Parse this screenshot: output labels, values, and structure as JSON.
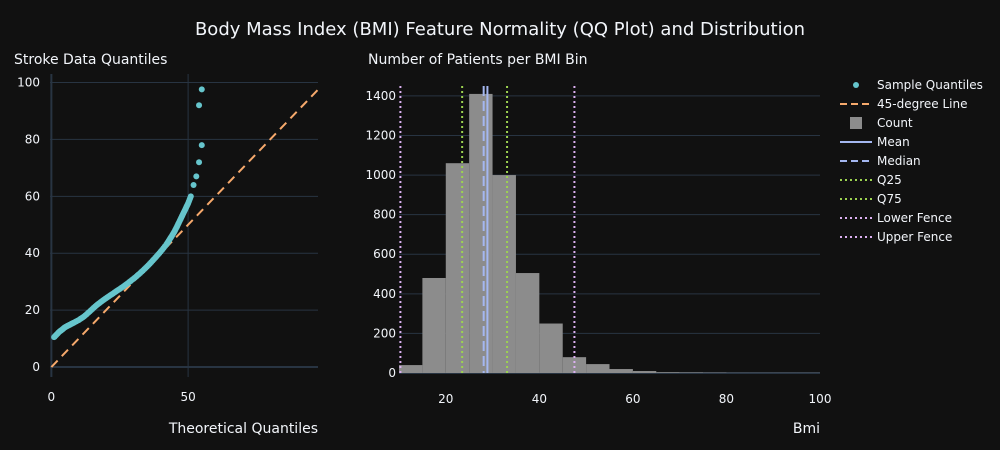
{
  "title": "Body Mass Index (BMI) Feature Normality (QQ Plot) and Distribution",
  "colors": {
    "background": "#111111",
    "grid": "#283442",
    "sample": "#66c5cc",
    "line45": "#f6a96c",
    "bars": "#8c8c8c",
    "mean": "#a4b7f0",
    "median": "#a4b7f0",
    "quartiles": "#9cd350",
    "fences": "#dcb0f2"
  },
  "chart_data": [
    {
      "type": "scatter",
      "subtitle": "Stroke Data Quantiles",
      "xlabel": "Theoretical Quantiles",
      "ylabel": "",
      "xlim": [
        -0.5,
        97.5
      ],
      "ylim": [
        -3.5,
        103
      ],
      "xticks": [
        0,
        50
      ],
      "yticks": [
        0,
        20,
        40,
        60,
        80,
        100
      ],
      "grid": true,
      "series": [
        {
          "name": "Sample Quantiles",
          "x": [
            1,
            2,
            3,
            4,
            5,
            6,
            7,
            8,
            10,
            12,
            14,
            16,
            18,
            20,
            22,
            24,
            26,
            28,
            30,
            32,
            34,
            36,
            38,
            40,
            42,
            43,
            44,
            45,
            46,
            47,
            48,
            49,
            50,
            51,
            52,
            53,
            54,
            55
          ],
          "y": [
            10.5,
            11.5,
            12.5,
            13.2,
            14,
            14.5,
            15,
            15.5,
            16.5,
            17.8,
            19.5,
            21.3,
            22.8,
            24.2,
            25.5,
            26.8,
            28.1,
            29.5,
            31,
            32.6,
            34.4,
            36.3,
            38.4,
            40.6,
            43,
            44.5,
            46,
            47.6,
            49.5,
            51.5,
            53.5,
            55.5,
            57.5,
            60,
            64,
            67,
            72,
            78
          ]
        },
        {
          "name": "Sample Quantiles",
          "x": [
            54,
            55
          ],
          "y": [
            92,
            97.6
          ]
        },
        {
          "name": "45-degree Line",
          "x": [
            0,
            97.5
          ],
          "y": [
            0,
            97.5
          ]
        }
      ]
    },
    {
      "type": "bar",
      "subtitle": "Number of Patients per BMI Bin",
      "xlabel": "Bmi",
      "ylabel": "",
      "xlim": [
        10,
        100
      ],
      "ylim": [
        0,
        1450
      ],
      "xticks": [
        20,
        40,
        60,
        80,
        100
      ],
      "yticks": [
        0,
        200,
        400,
        600,
        800,
        1000,
        1200,
        1400
      ],
      "grid": true,
      "series": [
        {
          "name": "Count",
          "bins": [
            [
              10,
              15
            ],
            [
              15,
              20
            ],
            [
              20,
              25
            ],
            [
              25,
              30
            ],
            [
              30,
              35
            ],
            [
              35,
              40
            ],
            [
              40,
              45
            ],
            [
              45,
              50
            ],
            [
              50,
              55
            ],
            [
              55,
              60
            ],
            [
              60,
              65
            ],
            [
              65,
              70
            ],
            [
              70,
              75
            ],
            [
              75,
              80
            ],
            [
              80,
              85
            ],
            [
              85,
              90
            ],
            [
              90,
              95
            ],
            [
              95,
              100
            ]
          ],
          "values": [
            40,
            480,
            1060,
            1410,
            1000,
            505,
            250,
            80,
            45,
            20,
            10,
            4,
            3,
            2,
            1,
            1,
            1,
            1
          ]
        }
      ],
      "reference_lines": [
        {
          "name": "Mean",
          "x": 28.9,
          "style": "solid"
        },
        {
          "name": "Median",
          "x": 28.1,
          "style": "dash"
        },
        {
          "name": "Q25",
          "x": 23.5,
          "style": "dot"
        },
        {
          "name": "Q75",
          "x": 33.1,
          "style": "dot"
        },
        {
          "name": "Lower Fence",
          "x": 10.3,
          "style": "dot"
        },
        {
          "name": "Upper Fence",
          "x": 47.5,
          "style": "dot"
        }
      ]
    }
  ],
  "legend": {
    "placement": "right",
    "items": [
      "Sample Quantiles",
      "45-degree Line",
      "Count",
      "Mean",
      "Median",
      "Q25",
      "Q75",
      "Lower Fence",
      "Upper Fence"
    ]
  }
}
